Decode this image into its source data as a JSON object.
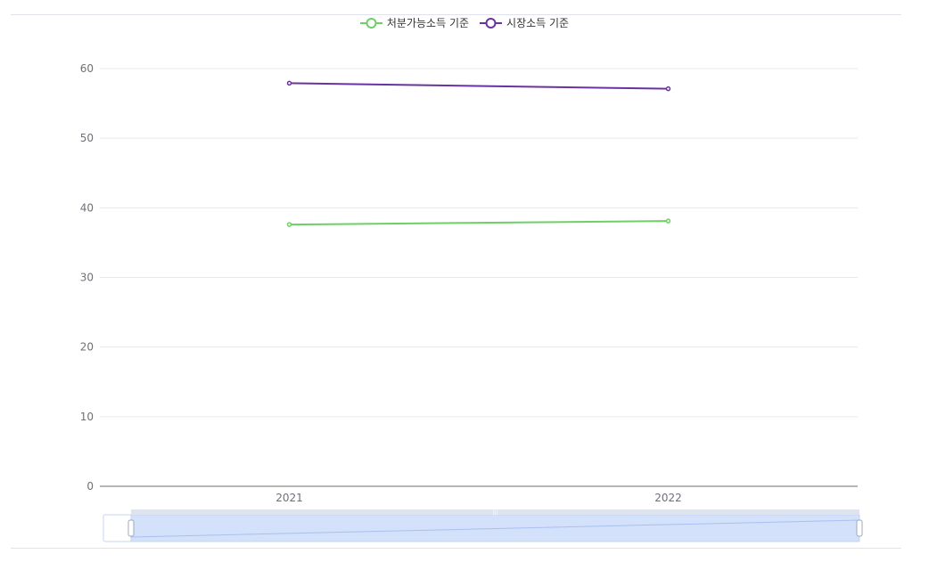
{
  "chart_data": {
    "type": "line",
    "categories": [
      "2021",
      "2022"
    ],
    "series": [
      {
        "name": "처분가능소득 기준",
        "color": "#6dd065",
        "values": [
          37.6,
          38.1
        ]
      },
      {
        "name": "시장소득 기준",
        "color": "#6a32a0",
        "values": [
          57.9,
          57.1
        ]
      }
    ],
    "yticks": [
      0,
      10,
      20,
      30,
      40,
      50,
      60
    ],
    "ylim": [
      0,
      60
    ],
    "grid": true,
    "legend_position": "top-center",
    "datazoom": {
      "start": 0,
      "end": 100
    }
  },
  "colors": {
    "grid": "#e6e8ef",
    "axis": "#6e6e6e",
    "tick_text": "#6e7079",
    "slider_fill": "#d3e1fb",
    "slider_border": "#c4d4f2",
    "slider_top": "#dfe3ee"
  }
}
